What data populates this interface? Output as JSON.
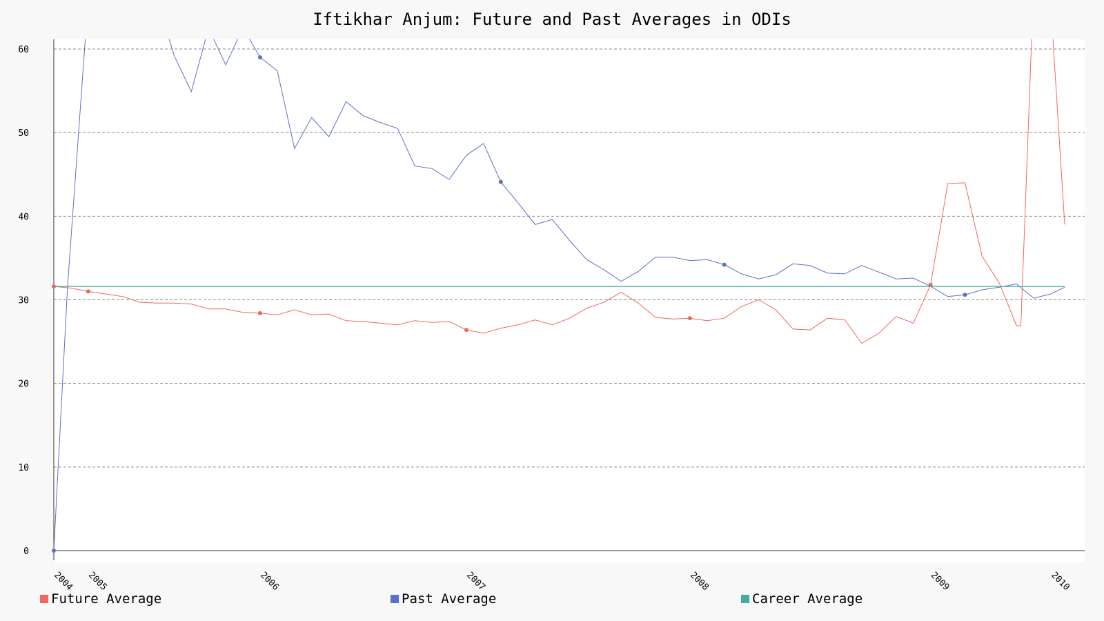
{
  "chart_data": {
    "type": "line",
    "title": "Iftikhar Anjum: Future and Past Averages in ODIs",
    "xlabel": "",
    "ylabel": "",
    "ylim": [
      0,
      61
    ],
    "xlim": [
      2003.98,
      2010.2
    ],
    "y_ticks": [
      0,
      10,
      20,
      30,
      40,
      50,
      60
    ],
    "x_ticks": [
      {
        "label": "2004",
        "x": 2004.0
      },
      {
        "label": "2005",
        "x": 2004.2
      },
      {
        "label": "2006",
        "x": 2005.2
      },
      {
        "label": "2007",
        "x": 2006.4
      },
      {
        "label": "2008",
        "x": 2007.7
      },
      {
        "label": "2009",
        "x": 2009.1
      },
      {
        "label": "2010",
        "x": 2009.8
      }
    ],
    "grid": true,
    "legend_position": "bottom",
    "series": [
      {
        "name": "Future Average",
        "color": "#f0675b",
        "markers": [
          0,
          2,
          12,
          24,
          37,
          51
        ],
        "x": [
          2004.0,
          2004.1,
          2004.2,
          2004.3,
          2004.4,
          2004.5,
          2004.6,
          2004.7,
          2004.8,
          2004.9,
          2005.0,
          2005.1,
          2005.2,
          2005.3,
          2005.4,
          2005.5,
          2005.6,
          2005.7,
          2005.8,
          2005.9,
          2006.0,
          2006.1,
          2006.2,
          2006.3,
          2006.4,
          2006.5,
          2006.6,
          2006.7,
          2006.8,
          2006.9,
          2007.0,
          2007.1,
          2007.2,
          2007.3,
          2007.4,
          2007.5,
          2007.6,
          2007.7,
          2007.8,
          2007.9,
          2008.0,
          2008.1,
          2008.2,
          2008.3,
          2008.4,
          2008.5,
          2008.6,
          2008.7,
          2008.8,
          2008.9,
          2009.0,
          2009.1,
          2009.2,
          2009.3,
          2009.4,
          2009.5,
          2009.6,
          2009.625,
          2009.7,
          2009.73,
          2009.8,
          2009.88
        ],
        "values": [
          31.6,
          31.4,
          31.0,
          30.7,
          30.4,
          29.7,
          29.6,
          29.6,
          29.5,
          28.9,
          28.9,
          28.5,
          28.4,
          28.2,
          28.8,
          28.2,
          28.3,
          27.5,
          27.4,
          27.2,
          27.0,
          27.5,
          27.3,
          27.4,
          26.4,
          26.0,
          26.6,
          27.0,
          27.6,
          27.0,
          27.8,
          29.0,
          29.7,
          30.9,
          29.6,
          27.9,
          27.7,
          27.8,
          27.5,
          27.8,
          29.2,
          30.0,
          28.8,
          26.5,
          26.4,
          27.8,
          27.6,
          24.8,
          26.0,
          28.0,
          27.2,
          31.8,
          43.9,
          44.0,
          35.2,
          32.0,
          26.9,
          26.9,
          68.0,
          68.0,
          65.0,
          39.0
        ]
      },
      {
        "name": "Past Average",
        "color": "#5c6fcb",
        "markers": [
          0,
          10,
          24,
          37,
          51,
          60
        ],
        "x": [
          2004.0,
          2004.08,
          2004.2,
          2004.4,
          2004.6,
          2004.7,
          2004.8,
          2004.9,
          2005.0,
          2005.1,
          2005.2,
          2005.3,
          2005.4,
          2005.5,
          2005.6,
          2005.7,
          2005.8,
          2005.9,
          2006.0,
          2006.1,
          2006.2,
          2006.3,
          2006.4,
          2006.5,
          2006.6,
          2006.7,
          2006.8,
          2006.9,
          2007.0,
          2007.1,
          2007.2,
          2007.3,
          2007.4,
          2007.5,
          2007.6,
          2007.7,
          2007.8,
          2007.9,
          2008.0,
          2008.1,
          2008.2,
          2008.3,
          2008.4,
          2008.5,
          2008.6,
          2008.7,
          2008.8,
          2008.9,
          2009.0,
          2009.1,
          2009.2,
          2009.3,
          2009.4,
          2009.5,
          2009.6,
          2009.7,
          2009.8,
          2009.88
        ],
        "values": [
          0,
          31.6,
          66.0,
          66.0,
          66.0,
          59.2,
          54.9,
          62.5,
          58.1,
          62.5,
          59.0,
          57.4,
          48.1,
          51.8,
          49.5,
          53.7,
          52.0,
          51.2,
          50.5,
          46.0,
          45.7,
          44.4,
          47.3,
          48.7,
          44.1,
          41.6,
          39.0,
          39.6,
          37.1,
          34.8,
          33.6,
          32.2,
          33.4,
          35.1,
          35.1,
          34.7,
          34.8,
          34.2,
          33.1,
          32.5,
          33.0,
          34.3,
          34.1,
          33.2,
          33.1,
          34.1,
          33.3,
          32.5,
          32.6,
          31.6,
          30.4,
          30.6,
          31.2,
          31.5,
          31.9,
          30.2,
          30.7,
          31.5
        ]
      },
      {
        "name": "Career Average",
        "color": "#3fae9a",
        "x": [
          2004.0,
          2009.88
        ],
        "values": [
          31.6,
          31.6
        ]
      }
    ]
  }
}
